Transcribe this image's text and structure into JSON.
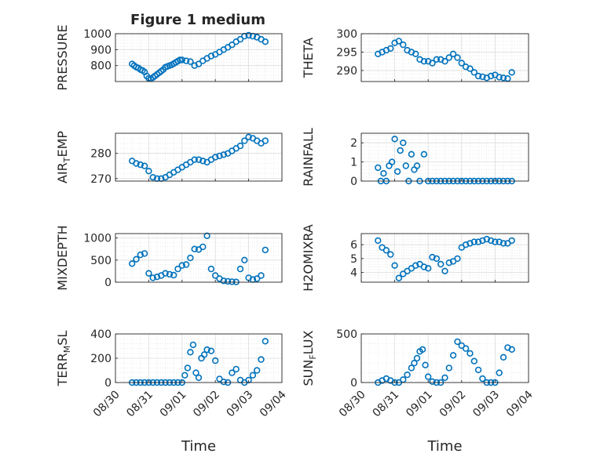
{
  "figure": {
    "title": "Figure 1 medium",
    "accent_color": "#0072BD"
  },
  "chart_data": [
    {
      "type": "scatter",
      "title": "Figure 1 medium",
      "ylabel": "PRESSURE",
      "xlabel": "",
      "ylim": [
        700,
        1000
      ],
      "yticks": [
        800,
        900,
        1000
      ],
      "xlim": [
        "2020-08-30",
        "2020-09-04"
      ],
      "xticks": [],
      "grid": true,
      "x": [
        "2020-08-30T12:00",
        "2020-08-30T13:30",
        "2020-08-30T15:00",
        "2020-08-30T16:30",
        "2020-08-30T18:00",
        "2020-08-30T19:30",
        "2020-08-30T21:00",
        "2020-08-30T22:30",
        "2020-08-31T00:00",
        "2020-08-31T01:30",
        "2020-08-31T03:00",
        "2020-08-31T04:30",
        "2020-08-31T06:00",
        "2020-08-31T07:30",
        "2020-08-31T09:00",
        "2020-08-31T10:30",
        "2020-08-31T12:00",
        "2020-08-31T13:30",
        "2020-08-31T15:00",
        "2020-08-31T16:30",
        "2020-08-31T18:00",
        "2020-08-31T19:30",
        "2020-08-31T21:00",
        "2020-08-31T22:30",
        "2020-09-01T00:00",
        "2020-09-01T03:00",
        "2020-09-01T06:00",
        "2020-09-01T09:00",
        "2020-09-01T12:00",
        "2020-09-01T15:00",
        "2020-09-01T18:00",
        "2020-09-01T21:00",
        "2020-09-02T00:00",
        "2020-09-02T03:00",
        "2020-09-02T06:00",
        "2020-09-02T09:00",
        "2020-09-02T12:00",
        "2020-09-02T15:00",
        "2020-09-02T18:00",
        "2020-09-02T21:00",
        "2020-09-03T00:00",
        "2020-09-03T03:00",
        "2020-09-03T06:00",
        "2020-09-03T09:00",
        "2020-09-03T12:00"
      ],
      "y": [
        810,
        800,
        790,
        785,
        775,
        770,
        760,
        735,
        720,
        718,
        725,
        735,
        745,
        755,
        765,
        775,
        790,
        795,
        800,
        805,
        812,
        820,
        828,
        835,
        835,
        830,
        825,
        800,
        810,
        830,
        845,
        860,
        870,
        885,
        900,
        915,
        930,
        950,
        965,
        985,
        990,
        985,
        978,
        965,
        950
      ]
    },
    {
      "type": "scatter",
      "title": "",
      "ylabel": "THETA",
      "xlabel": "",
      "ylim": [
        287,
        300
      ],
      "yticks": [
        290,
        295,
        300
      ],
      "xlim": [
        "2020-08-30",
        "2020-09-04"
      ],
      "xticks": [],
      "grid": true,
      "x": [
        "2020-08-30T12:00",
        "2020-08-30T15:00",
        "2020-08-30T18:00",
        "2020-08-30T21:00",
        "2020-08-31T00:00",
        "2020-08-31T03:00",
        "2020-08-31T06:00",
        "2020-08-31T09:00",
        "2020-08-31T12:00",
        "2020-08-31T15:00",
        "2020-08-31T18:00",
        "2020-08-31T21:00",
        "2020-09-01T00:00",
        "2020-09-01T03:00",
        "2020-09-01T06:00",
        "2020-09-01T09:00",
        "2020-09-01T12:00",
        "2020-09-01T15:00",
        "2020-09-01T18:00",
        "2020-09-01T21:00",
        "2020-09-02T00:00",
        "2020-09-02T03:00",
        "2020-09-02T06:00",
        "2020-09-02T09:00",
        "2020-09-02T12:00",
        "2020-09-02T15:00",
        "2020-09-02T18:00",
        "2020-09-02T21:00",
        "2020-09-03T00:00",
        "2020-09-03T03:00",
        "2020-09-03T06:00",
        "2020-09-03T09:00",
        "2020-09-03T12:00"
      ],
      "y": [
        294.5,
        295,
        295.5,
        296,
        297.5,
        298,
        297,
        295.5,
        295,
        294.5,
        293,
        292.5,
        292.5,
        292,
        293,
        293,
        292.5,
        293.5,
        294.5,
        293.5,
        292,
        291,
        290.5,
        289.5,
        288.5,
        288.3,
        288,
        288.5,
        288.8,
        288.2,
        288,
        287.8,
        289.5
      ]
    },
    {
      "type": "scatter",
      "title": "",
      "ylabel": "AIR_TEMP",
      "xlabel": "",
      "ylim": [
        269,
        288
      ],
      "yticks": [
        270,
        280
      ],
      "xlim": [
        "2020-08-30",
        "2020-09-04"
      ],
      "xticks": [],
      "grid": true,
      "x": [
        "2020-08-30T12:00",
        "2020-08-30T15:00",
        "2020-08-30T18:00",
        "2020-08-30T21:00",
        "2020-08-31T00:00",
        "2020-08-31T03:00",
        "2020-08-31T06:00",
        "2020-08-31T09:00",
        "2020-08-31T12:00",
        "2020-08-31T15:00",
        "2020-08-31T18:00",
        "2020-08-31T21:00",
        "2020-09-01T00:00",
        "2020-09-01T03:00",
        "2020-09-01T06:00",
        "2020-09-01T09:00",
        "2020-09-01T12:00",
        "2020-09-01T15:00",
        "2020-09-01T18:00",
        "2020-09-01T21:00",
        "2020-09-02T00:00",
        "2020-09-02T03:00",
        "2020-09-02T06:00",
        "2020-09-02T09:00",
        "2020-09-02T12:00",
        "2020-09-02T15:00",
        "2020-09-02T18:00",
        "2020-09-02T21:00",
        "2020-09-03T00:00",
        "2020-09-03T03:00",
        "2020-09-03T06:00",
        "2020-09-03T09:00",
        "2020-09-03T12:00"
      ],
      "y": [
        277,
        276,
        275.5,
        275,
        273,
        270.5,
        270,
        270,
        270.5,
        271.5,
        272.5,
        273.5,
        274.5,
        275.5,
        276.5,
        277.5,
        277.5,
        277,
        276.5,
        277.5,
        278.5,
        279,
        279.5,
        280,
        281,
        282,
        283,
        285,
        286.5,
        286,
        285,
        284,
        285
      ]
    },
    {
      "type": "scatter",
      "title": "",
      "ylabel": "RAINFALL",
      "xlabel": "",
      "ylim": [
        0,
        2.5
      ],
      "yticks": [
        0,
        1,
        2
      ],
      "xlim": [
        "2020-08-30",
        "2020-09-04"
      ],
      "xticks": [],
      "grid": true,
      "x": [
        "2020-08-30T12:00",
        "2020-08-30T14:00",
        "2020-08-30T16:00",
        "2020-08-30T18:00",
        "2020-08-30T20:00",
        "2020-08-30T22:00",
        "2020-08-31T00:00",
        "2020-08-31T02:00",
        "2020-08-31T04:00",
        "2020-08-31T06:00",
        "2020-08-31T08:00",
        "2020-08-31T10:00",
        "2020-08-31T12:00",
        "2020-08-31T14:00",
        "2020-08-31T16:00",
        "2020-08-31T18:00",
        "2020-08-31T21:00",
        "2020-09-01T00:00",
        "2020-09-01T03:00",
        "2020-09-01T06:00",
        "2020-09-01T09:00",
        "2020-09-01T12:00",
        "2020-09-01T15:00",
        "2020-09-01T18:00",
        "2020-09-01T21:00",
        "2020-09-02T00:00",
        "2020-09-02T03:00",
        "2020-09-02T06:00",
        "2020-09-02T09:00",
        "2020-09-02T12:00",
        "2020-09-02T15:00",
        "2020-09-02T18:00",
        "2020-09-02T21:00",
        "2020-09-03T00:00",
        "2020-09-03T03:00",
        "2020-09-03T06:00",
        "2020-09-03T09:00",
        "2020-09-03T12:00"
      ],
      "y": [
        0.7,
        0,
        0.4,
        0,
        0.8,
        1.0,
        2.2,
        0.5,
        1.6,
        2.0,
        0.8,
        0,
        1.4,
        0.6,
        0.8,
        0,
        1.4,
        0,
        0,
        0,
        0,
        0,
        0,
        0,
        0,
        0,
        0,
        0,
        0,
        0,
        0,
        0,
        0,
        0,
        0,
        0,
        0,
        0
      ]
    },
    {
      "type": "scatter",
      "title": "",
      "ylabel": "MIXDEPTH",
      "xlabel": "",
      "ylim": [
        0,
        1100
      ],
      "yticks": [
        0,
        500,
        1000
      ],
      "xlim": [
        "2020-08-30",
        "2020-09-04"
      ],
      "xticks": [],
      "grid": true,
      "x": [
        "2020-08-30T12:00",
        "2020-08-30T15:00",
        "2020-08-30T18:00",
        "2020-08-30T21:00",
        "2020-08-31T00:00",
        "2020-08-31T03:00",
        "2020-08-31T06:00",
        "2020-08-31T09:00",
        "2020-08-31T12:00",
        "2020-08-31T15:00",
        "2020-08-31T18:00",
        "2020-08-31T21:00",
        "2020-09-01T00:00",
        "2020-09-01T03:00",
        "2020-09-01T06:00",
        "2020-09-01T09:00",
        "2020-09-01T12:00",
        "2020-09-01T15:00",
        "2020-09-01T18:00",
        "2020-09-01T21:00",
        "2020-09-02T00:00",
        "2020-09-02T03:00",
        "2020-09-02T06:00",
        "2020-09-02T09:00",
        "2020-09-02T12:00",
        "2020-09-02T15:00",
        "2020-09-02T18:00",
        "2020-09-02T21:00",
        "2020-09-03T00:00",
        "2020-09-03T03:00",
        "2020-09-03T06:00",
        "2020-09-03T09:00",
        "2020-09-03T12:00"
      ],
      "y": [
        420,
        520,
        620,
        650,
        200,
        100,
        120,
        150,
        200,
        180,
        160,
        300,
        380,
        400,
        550,
        750,
        740,
        800,
        1050,
        300,
        150,
        80,
        30,
        20,
        10,
        5,
        300,
        500,
        100,
        60,
        80,
        150,
        730
      ]
    },
    {
      "type": "scatter",
      "title": "",
      "ylabel": "H2OMIXRA",
      "xlabel": "",
      "ylim": [
        3.3,
        6.8
      ],
      "yticks": [
        4,
        5,
        6
      ],
      "xlim": [
        "2020-08-30",
        "2020-09-04"
      ],
      "xticks": [],
      "grid": true,
      "x": [
        "2020-08-30T12:00",
        "2020-08-30T15:00",
        "2020-08-30T18:00",
        "2020-08-30T21:00",
        "2020-08-31T00:00",
        "2020-08-31T03:00",
        "2020-08-31T06:00",
        "2020-08-31T09:00",
        "2020-08-31T12:00",
        "2020-08-31T15:00",
        "2020-08-31T18:00",
        "2020-08-31T21:00",
        "2020-09-01T00:00",
        "2020-09-01T03:00",
        "2020-09-01T06:00",
        "2020-09-01T09:00",
        "2020-09-01T12:00",
        "2020-09-01T15:00",
        "2020-09-01T18:00",
        "2020-09-01T21:00",
        "2020-09-02T00:00",
        "2020-09-02T03:00",
        "2020-09-02T06:00",
        "2020-09-02T09:00",
        "2020-09-02T12:00",
        "2020-09-02T15:00",
        "2020-09-02T18:00",
        "2020-09-02T21:00",
        "2020-09-03T00:00",
        "2020-09-03T03:00",
        "2020-09-03T06:00",
        "2020-09-03T09:00",
        "2020-09-03T12:00"
      ],
      "y": [
        6.3,
        5.8,
        5.6,
        5.3,
        4.5,
        3.6,
        3.9,
        4.1,
        4.3,
        4.5,
        4.6,
        4.4,
        4.3,
        5.1,
        5.0,
        4.6,
        4.1,
        4.7,
        4.8,
        5.0,
        5.8,
        6.0,
        6.1,
        6.2,
        6.2,
        6.3,
        6.4,
        6.3,
        6.2,
        6.2,
        6.1,
        6.1,
        6.3
      ]
    },
    {
      "type": "scatter",
      "title": "",
      "ylabel": "TERR_MSL",
      "xlabel": "Time",
      "ylim": [
        0,
        400
      ],
      "yticks": [
        0,
        200,
        400
      ],
      "xlim": [
        "2020-08-30",
        "2020-09-04"
      ],
      "xticks": [
        "08/30",
        "08/31",
        "09/01",
        "09/02",
        "09/03",
        "09/04"
      ],
      "grid": true,
      "x": [
        "2020-08-30T12:00",
        "2020-08-30T15:00",
        "2020-08-30T18:00",
        "2020-08-30T21:00",
        "2020-08-31T00:00",
        "2020-08-31T03:00",
        "2020-08-31T06:00",
        "2020-08-31T09:00",
        "2020-08-31T12:00",
        "2020-08-31T15:00",
        "2020-08-31T18:00",
        "2020-08-31T21:00",
        "2020-09-01T00:00",
        "2020-09-01T02:00",
        "2020-09-01T04:00",
        "2020-09-01T06:00",
        "2020-09-01T08:00",
        "2020-09-01T10:00",
        "2020-09-01T12:00",
        "2020-09-01T14:00",
        "2020-09-01T16:00",
        "2020-09-01T18:00",
        "2020-09-01T21:00",
        "2020-09-02T00:00",
        "2020-09-02T03:00",
        "2020-09-02T06:00",
        "2020-09-02T09:00",
        "2020-09-02T12:00",
        "2020-09-02T15:00",
        "2020-09-02T18:00",
        "2020-09-02T21:00",
        "2020-09-03T00:00",
        "2020-09-03T03:00",
        "2020-09-03T06:00",
        "2020-09-03T09:00",
        "2020-09-03T12:00"
      ],
      "y": [
        0,
        0,
        0,
        0,
        0,
        0,
        0,
        0,
        0,
        0,
        0,
        0,
        0,
        60,
        120,
        250,
        310,
        80,
        40,
        200,
        230,
        270,
        260,
        180,
        30,
        5,
        0,
        80,
        110,
        20,
        0,
        20,
        60,
        100,
        190,
        340
      ]
    },
    {
      "type": "scatter",
      "title": "",
      "ylabel": "SUN_FLUX",
      "xlabel": "Time",
      "ylim": [
        0,
        500
      ],
      "yticks": [
        0,
        500
      ],
      "xlim": [
        "2020-08-30",
        "2020-09-04"
      ],
      "xticks": [
        "08/30",
        "08/31",
        "09/01",
        "09/02",
        "09/03",
        "09/04"
      ],
      "grid": true,
      "x": [
        "2020-08-30T12:00",
        "2020-08-30T15:00",
        "2020-08-30T18:00",
        "2020-08-30T21:00",
        "2020-08-31T00:00",
        "2020-08-31T03:00",
        "2020-08-31T06:00",
        "2020-08-31T09:00",
        "2020-08-31T12:00",
        "2020-08-31T14:00",
        "2020-08-31T16:00",
        "2020-08-31T18:00",
        "2020-08-31T20:00",
        "2020-08-31T22:00",
        "2020-09-01T00:00",
        "2020-09-01T03:00",
        "2020-09-01T06:00",
        "2020-09-01T09:00",
        "2020-09-01T12:00",
        "2020-09-01T15:00",
        "2020-09-01T18:00",
        "2020-09-01T21:00",
        "2020-09-02T00:00",
        "2020-09-02T03:00",
        "2020-09-02T06:00",
        "2020-09-02T09:00",
        "2020-09-02T12:00",
        "2020-09-02T15:00",
        "2020-09-02T18:00",
        "2020-09-02T21:00",
        "2020-09-03T00:00",
        "2020-09-03T03:00",
        "2020-09-03T06:00",
        "2020-09-03T09:00",
        "2020-09-03T12:00"
      ],
      "y": [
        0,
        20,
        40,
        20,
        0,
        0,
        30,
        80,
        150,
        200,
        250,
        320,
        340,
        180,
        60,
        10,
        0,
        0,
        50,
        150,
        280,
        420,
        380,
        350,
        300,
        220,
        130,
        40,
        0,
        0,
        0,
        100,
        260,
        360,
        340
      ]
    }
  ]
}
